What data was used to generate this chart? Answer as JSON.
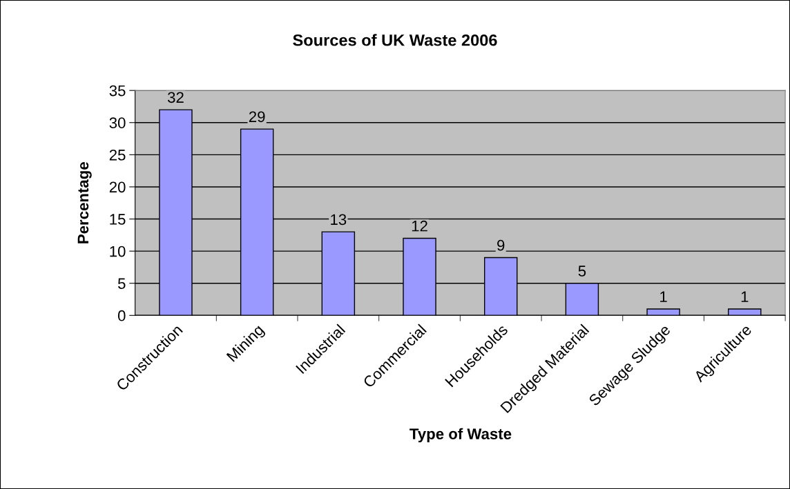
{
  "chart_data": {
    "type": "bar",
    "title": "Sources of UK Waste 2006",
    "xlabel": "Type of Waste",
    "ylabel": "Percentage",
    "categories": [
      "Construction",
      "Mining",
      "Industrial",
      "Commercial",
      "Households",
      "Dredged Material",
      "Sewage Sludge",
      "Agriculture"
    ],
    "values": [
      32,
      29,
      13,
      12,
      9,
      5,
      1,
      1
    ],
    "color": "#9999ff",
    "ylim": [
      0,
      35
    ],
    "yticks": [
      0,
      5,
      10,
      15,
      20,
      25,
      30,
      35
    ],
    "grid": "y",
    "data_labels": true
  }
}
